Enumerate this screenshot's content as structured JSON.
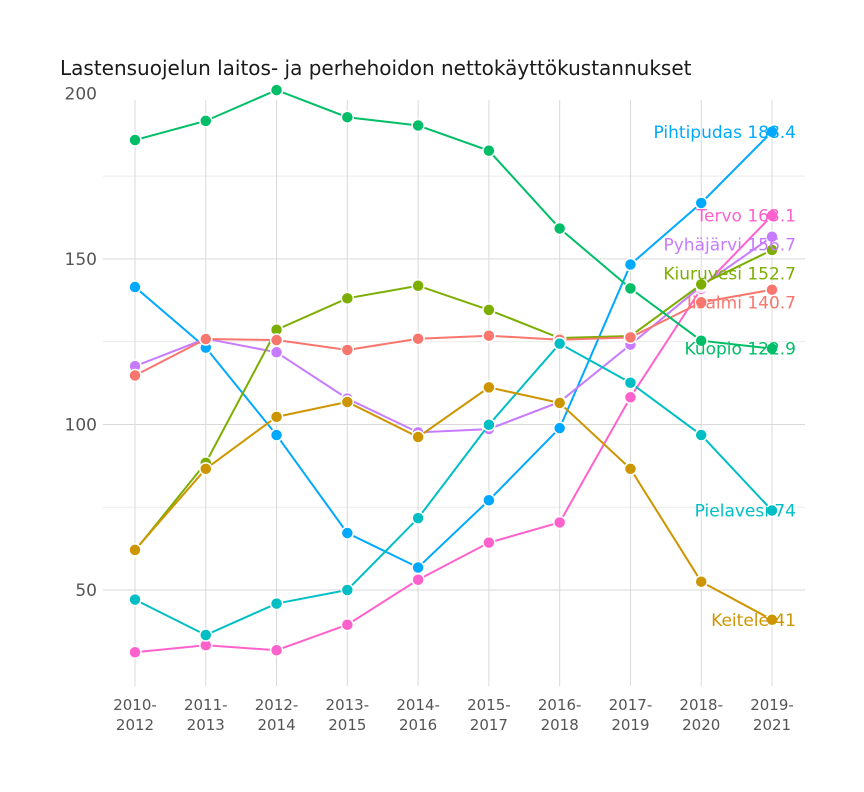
{
  "chart_data": {
    "type": "line",
    "title": "Lastensuojelun laitos- ja perhehoidon nettokäyttökustannukset",
    "xlabel": "",
    "ylabel": "",
    "categories": [
      [
        "2010-",
        "2012"
      ],
      [
        "2011-",
        "2013"
      ],
      [
        "2012-",
        "2014"
      ],
      [
        "2013-",
        "2015"
      ],
      [
        "2014-",
        "2016"
      ],
      [
        "2015-",
        "2017"
      ],
      [
        "2016-",
        "2018"
      ],
      [
        "2017-",
        "2019"
      ],
      [
        "2018-",
        "2020"
      ],
      [
        "2019-",
        "2021"
      ]
    ],
    "ylim": [
      21,
      198
    ],
    "yticks": [
      50,
      100,
      150,
      200
    ],
    "grid": true,
    "legend": "none (direct labels at line ends)",
    "series": [
      {
        "name": "Pihtipudas",
        "end_label": "Pihtipudas 188.4",
        "color": "#00a9ff",
        "values": [
          141.5,
          123.2,
          96.8,
          67.2,
          56.8,
          77.1,
          98.9,
          148.3,
          166.9,
          188.4
        ]
      },
      {
        "name": "Tervo",
        "end_label": "Tervo 163.1",
        "color": "#ff61cc",
        "values": [
          31.2,
          33.3,
          31.8,
          39.5,
          53.1,
          64.3,
          70.4,
          108.2,
          141.0,
          163.1
        ]
      },
      {
        "name": "Pyhäjärvi",
        "end_label": "Pyhäjärvi 156.7",
        "color": "#c77cff",
        "values": [
          117.6,
          125.9,
          121.8,
          107.8,
          97.6,
          98.6,
          106.8,
          124.1,
          141.8,
          156.7
        ]
      },
      {
        "name": "Kiuruvesi",
        "end_label": "Kiuruvesi 152.7",
        "color": "#7cae00",
        "values": [
          61.9,
          88.4,
          128.6,
          138.1,
          141.9,
          134.6,
          126.1,
          126.7,
          142.3,
          152.7
        ]
      },
      {
        "name": "Iisalmi",
        "end_label": "Iisalmi 140.7",
        "color": "#f8766d",
        "values": [
          114.8,
          125.8,
          125.5,
          122.5,
          125.9,
          126.8,
          125.6,
          126.3,
          136.9,
          140.7
        ]
      },
      {
        "name": "Kuopio",
        "end_label": "Kuopio 122.9",
        "color": "#00be67",
        "values": [
          185.9,
          191.7,
          201.0,
          192.8,
          190.3,
          182.7,
          159.2,
          141.1,
          125.3,
          122.9
        ]
      },
      {
        "name": "Pielavesi",
        "end_label": "Pielavesi 74",
        "color": "#00bfc4",
        "values": [
          47.1,
          36.4,
          45.9,
          50.0,
          71.7,
          99.9,
          124.4,
          112.6,
          96.8,
          74.0
        ]
      },
      {
        "name": "Keitele",
        "end_label": "Keitele 41",
        "color": "#cd9600",
        "values": [
          62.1,
          86.6,
          102.3,
          106.8,
          96.2,
          111.2,
          106.5,
          86.6,
          52.5,
          41.0
        ]
      }
    ]
  }
}
